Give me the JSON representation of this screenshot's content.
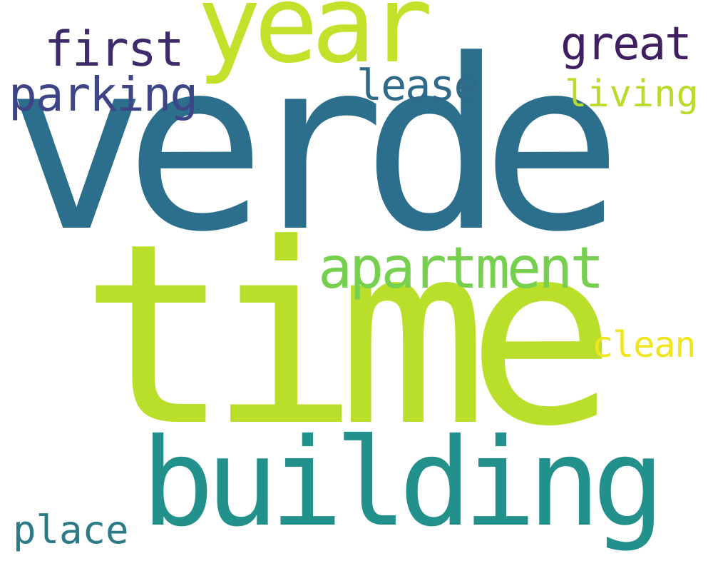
{
  "words": [
    {
      "text": "verde",
      "color": "#2c6f8c"
    },
    {
      "text": "time",
      "color": "#b9df2a"
    },
    {
      "text": "building",
      "color": "#23918b"
    },
    {
      "text": "year",
      "color": "#c3e02a"
    },
    {
      "text": "apartment",
      "color": "#77cf4f"
    },
    {
      "text": "first",
      "color": "#3f2a6b"
    },
    {
      "text": "parking",
      "color": "#3e4586"
    },
    {
      "text": "great",
      "color": "#3f1f61"
    },
    {
      "text": "lease",
      "color": "#2f6a88"
    },
    {
      "text": "living",
      "color": "#b9db2c"
    },
    {
      "text": "clean",
      "color": "#f0e51f"
    },
    {
      "text": "place",
      "color": "#2b7a86"
    }
  ]
}
